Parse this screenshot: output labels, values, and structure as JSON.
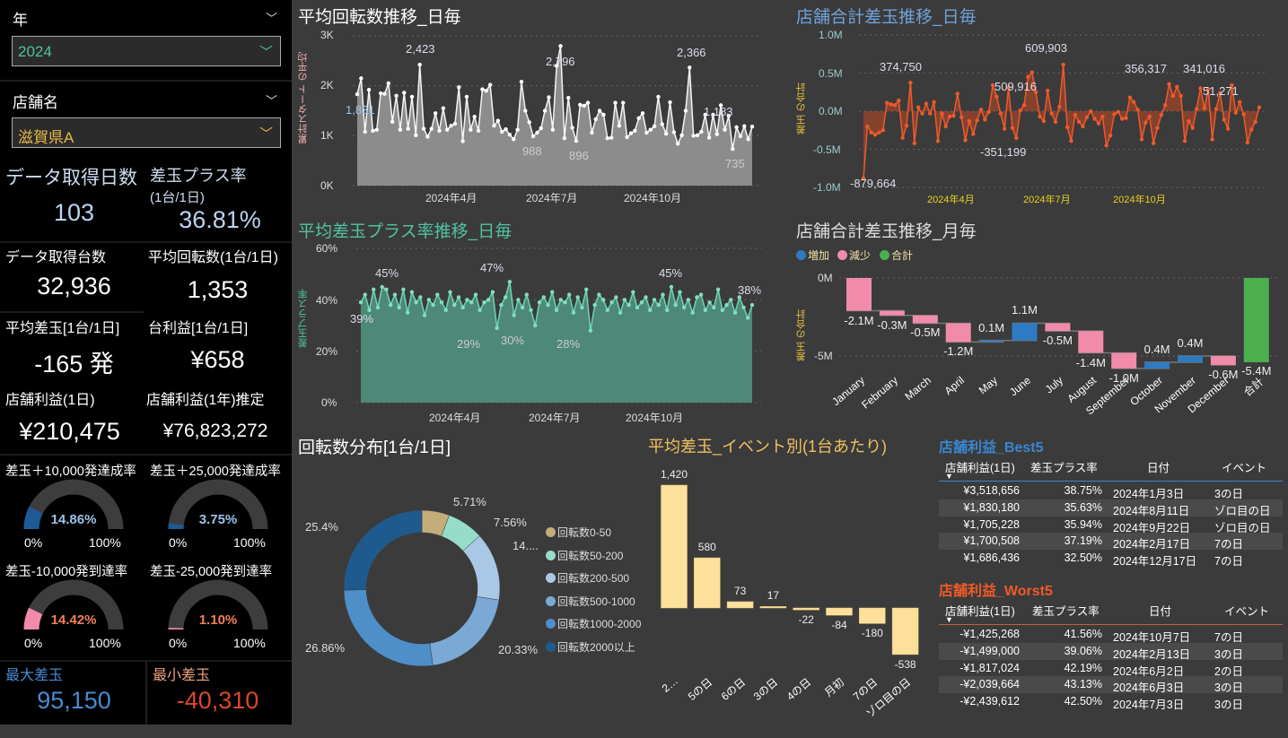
{
  "filters": {
    "year": {
      "label": "年",
      "value": "2024"
    },
    "store": {
      "label": "店舗名",
      "value": "滋賀県A"
    }
  },
  "kpis": {
    "days": {
      "label": "データ取得日数",
      "value": "103"
    },
    "plus_rate": {
      "label": "差玉プラス率",
      "sublabel": "(1台/1日)",
      "value": "36.81%"
    },
    "units": {
      "label": "データ取得台数",
      "value": "32,936"
    },
    "avg_spins": {
      "label": "平均回転数(1台/1日)",
      "value": "1,353"
    },
    "avg_diff": {
      "label": "平均差玉[1台/1日]",
      "value": "-165 発"
    },
    "unit_profit": {
      "label": "台利益[1台/1日]",
      "value": "¥658"
    },
    "store_profit_day": {
      "label": "店舗利益(1日)",
      "value": "¥210,475"
    },
    "store_profit_year": {
      "label": "店舗利益(1年)推定",
      "value": "¥76,823,272"
    },
    "max_diff": {
      "label": "最大差玉",
      "value": "95,150"
    },
    "min_diff": {
      "label": "最小差玉",
      "value": "-40,310"
    }
  },
  "gauges": [
    {
      "title": "差玉＋10,000発達成率",
      "value": "14.86%",
      "fraction": 0.1486,
      "min": "0%",
      "max": "100%",
      "color": "#1f5a96",
      "text_color": "#9cc3ea"
    },
    {
      "title": "差玉＋25,000発達成率",
      "value": "3.75%",
      "fraction": 0.0375,
      "min": "0%",
      "max": "100%",
      "color": "#1f5a96",
      "text_color": "#9cc3ea"
    },
    {
      "title": "差玉-10,000発到達率",
      "value": "14.42%",
      "fraction": 0.1442,
      "min": "0%",
      "max": "100%",
      "color": "#f08caa",
      "text_color": "#f0805a"
    },
    {
      "title": "差玉-25,000発到達率",
      "value": "1.10%",
      "fraction": 0.011,
      "min": "0%",
      "max": "100%",
      "color": "#f08caa",
      "text_color": "#f0805a"
    }
  ],
  "chart_data": [
    {
      "type": "line",
      "title": "平均回転数推移_日毎",
      "ylabel": "累計スタート の平均",
      "yticks": [
        "3K",
        "2K",
        "1K",
        "0K"
      ],
      "ylim": [
        0,
        3000
      ],
      "xticks": [
        "2024年4月",
        "2024年7月",
        "2024年10月"
      ],
      "annotations": [
        "1,831",
        "2,423",
        "2,796",
        "2,366",
        "1,183",
        "988",
        "896",
        "735"
      ],
      "values": [
        1831,
        2150,
        1080,
        1920,
        1100,
        1120,
        1850,
        1840,
        2050,
        1280,
        1800,
        1120,
        1860,
        1140,
        1780,
        1010,
        2423,
        1140,
        980,
        1140,
        1450,
        1100,
        1550,
        1120,
        1200,
        1240,
        1970,
        890,
        1780,
        1120,
        1380,
        1100,
        1930,
        1900,
        2020,
        1200,
        1300,
        1080,
        1130,
        1020,
        930,
        1120,
        2080,
        1500,
        1270,
        988,
        1060,
        1150,
        1500,
        1770,
        1120,
        2400,
        2796,
        950,
        1760,
        1160,
        896,
        1620,
        1600,
        1660,
        1060,
        1330,
        1500,
        1420,
        950,
        960,
        1660,
        1200,
        1660,
        970,
        1050,
        1100,
        1350,
        1450,
        1060,
        1120,
        1190,
        1780,
        1230,
        1040,
        1670,
        1070,
        840,
        1010,
        1500,
        2366,
        1000,
        1010,
        1080,
        1420,
        960,
        1420,
        1030,
        1610,
        1120,
        1400,
        735,
        1170,
        990,
        1190,
        930,
        1183
      ]
    },
    {
      "type": "area",
      "title": "店舗合計差玉推移_日毎",
      "ylabel": "差玉 の合計",
      "yticks": [
        "1.0M",
        "0.5M",
        "0.0M",
        "-0.5M",
        "-1.0M"
      ],
      "ylim": [
        -1000000,
        1000000
      ],
      "xticks": [
        "2024年4月",
        "2024年7月",
        "2024年10月"
      ],
      "annotations": [
        "374,750",
        "609,903",
        "509,916",
        "-351,199",
        "356,317",
        "341,016",
        "51,271",
        "-879,664"
      ],
      "values": [
        -879664,
        -200000,
        -280000,
        -310000,
        -280000,
        -250000,
        110000,
        90000,
        80000,
        140000,
        -350000,
        -190000,
        374750,
        -420000,
        50000,
        -30000,
        100000,
        -30000,
        120000,
        -390000,
        -30000,
        -200000,
        -70000,
        -60000,
        230000,
        -80000,
        -380000,
        -130000,
        -300000,
        -120000,
        20000,
        -110000,
        -10000,
        340000,
        190000,
        -30000,
        -230000,
        310000,
        -220000,
        -351199,
        10000,
        80000,
        450000,
        509916,
        250000,
        -70000,
        -130000,
        270000,
        -30000,
        -140000,
        60000,
        609903,
        -210000,
        -390000,
        -50000,
        -140000,
        -200000,
        -80000,
        0,
        -100000,
        -160000,
        -70000,
        -450000,
        -320000,
        -40000,
        -10000,
        -100000,
        -90000,
        180000,
        120000,
        20000,
        -370000,
        -150000,
        -70000,
        -420000,
        -220000,
        -50000,
        80000,
        356317,
        200000,
        320000,
        200000,
        -390000,
        -130000,
        -220000,
        30000,
        300000,
        40000,
        290000,
        -370000,
        30000,
        240000,
        -110000,
        -230000,
        341016,
        -20000,
        120000,
        -40000,
        -410000,
        -240000,
        -140000,
        51271
      ]
    },
    {
      "type": "area",
      "title": "平均差玉プラス率推移_日毎",
      "ylabel": "差玉プラス率",
      "yticks": [
        "60%",
        "40%",
        "20%",
        "0%"
      ],
      "ylim": [
        0,
        60
      ],
      "xticks": [
        "2024年4月",
        "2024年7月",
        "2024年10月"
      ],
      "annotations": [
        "39%",
        "45%",
        "47%",
        "45%",
        "38%",
        "29%",
        "30%",
        "28%"
      ],
      "values": [
        39,
        42,
        36,
        44,
        37,
        45,
        44,
        38,
        42,
        37,
        44,
        35,
        43,
        39,
        41,
        34,
        40,
        38,
        42,
        39,
        36,
        43,
        38,
        41,
        37,
        40,
        39,
        42,
        36,
        39,
        40,
        43,
        29,
        38,
        41,
        47,
        34,
        40,
        37,
        42,
        36,
        30,
        39,
        41,
        38,
        43,
        36,
        40,
        39,
        42,
        35,
        41,
        37,
        44,
        28,
        38,
        42,
        40,
        36,
        39,
        41,
        35,
        40,
        38,
        43,
        37,
        39,
        41,
        36,
        40,
        38,
        42,
        36,
        45,
        38,
        43,
        37,
        40,
        35,
        41,
        42,
        36,
        39,
        37,
        44,
        36,
        38,
        40,
        35,
        41,
        37,
        33,
        38
      ]
    },
    {
      "type": "bar",
      "subtype": "waterfall",
      "title": "店舗合計差玉推移_月毎",
      "ylabel": "差玉 の合計",
      "legend": [
        "増加",
        "減少",
        "合計"
      ],
      "legend_colors": [
        "#2e7bc4",
        "#f08caa",
        "#4caf50"
      ],
      "yticks": [
        "0M",
        "-5M"
      ],
      "categories": [
        "January",
        "February",
        "March",
        "April",
        "May",
        "June",
        "July",
        "August",
        "September",
        "October",
        "November",
        "December",
        "合計"
      ],
      "values": [
        -2.1,
        -0.3,
        -0.5,
        -1.2,
        0.1,
        1.1,
        -0.5,
        -1.4,
        -1.0,
        0.4,
        0.4,
        -0.6,
        -5.4
      ],
      "labels": [
        "-2.1M",
        "-0.3M",
        "-0.5M",
        "-1.2M",
        "0.1M",
        "1.1M",
        "-0.5M",
        "-1.4M",
        "-1.0M",
        "0.4M",
        "0.4M",
        "-0.6M",
        "-5.4M"
      ]
    },
    {
      "type": "pie",
      "title": "回転数分布[1台/1日]",
      "categories": [
        "回転数0-50",
        "回転数50-200",
        "回転数200-500",
        "回転数500-1000",
        "回転数1000-2000",
        "回転数2000以上"
      ],
      "values": [
        5.71,
        7.56,
        14.14,
        20.33,
        26.86,
        25.4
      ],
      "labels": [
        "5.71%",
        "7.56%",
        "14....",
        "20.33%",
        "26.86%",
        "25.4%"
      ],
      "colors": [
        "#c4ad7a",
        "#96dcc8",
        "#a9c8e6",
        "#7aa9d6",
        "#4e8ec9",
        "#1f5a8f"
      ]
    },
    {
      "type": "bar",
      "title": "平均差玉_イベント別(1台あたり)",
      "categories": [
        "2…",
        "5の日",
        "6の日",
        "3の日",
        "4の日",
        "月初",
        "7の日",
        "ゾロ目の日"
      ],
      "values": [
        1420,
        580,
        73,
        17,
        -22,
        -84,
        -180,
        -538
      ],
      "labels": [
        "1,420",
        "580",
        "73",
        "17",
        "-22",
        "-84",
        "-180",
        "-538"
      ],
      "color": "#fde09a"
    }
  ],
  "tables": {
    "best": {
      "title": "店舗利益_Best5",
      "headers": [
        "店舗利益(1日)",
        "差玉プラス率",
        "日付",
        "イベント"
      ],
      "rows": [
        [
          "¥3,518,656",
          "38.75%",
          "2024年1月3日",
          "3の日"
        ],
        [
          "¥1,830,180",
          "35.63%",
          "2024年8月11日",
          "ゾロ目の日"
        ],
        [
          "¥1,705,228",
          "35.94%",
          "2024年9月22日",
          "ゾロ目の日"
        ],
        [
          "¥1,700,508",
          "37.19%",
          "2024年2月17日",
          "7の日"
        ],
        [
          "¥1,686,436",
          "32.50%",
          "2024年12月17日",
          "7の日"
        ]
      ]
    },
    "worst": {
      "title": "店舗利益_Worst5",
      "headers": [
        "店舗利益(1日)",
        "差玉プラス率",
        "日付",
        "イベント"
      ],
      "rows": [
        [
          "-¥1,425,268",
          "41.56%",
          "2024年10月7日",
          "7の日"
        ],
        [
          "-¥1,499,000",
          "39.06%",
          "2024年2月13日",
          "3の日"
        ],
        [
          "-¥1,817,024",
          "42.19%",
          "2024年6月2日",
          "2の日"
        ],
        [
          "-¥2,039,664",
          "43.13%",
          "2024年6月3日",
          "3の日"
        ],
        [
          "-¥2,439,612",
          "42.50%",
          "2024年7月3日",
          "3の日"
        ]
      ]
    }
  }
}
